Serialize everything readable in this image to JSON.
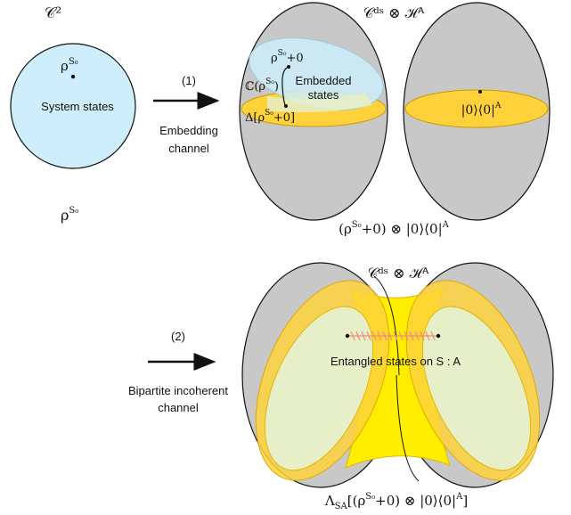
{
  "top": {
    "qubit_space": {
      "title": "𝒞²",
      "state_label": "ρ",
      "state_sup": "S₀",
      "region_label": "System states",
      "below_label": "ρ",
      "below_sup": "S₀"
    },
    "step1": {
      "number": "(1)",
      "line1": "Embedding",
      "line2": "channel"
    },
    "product_space": {
      "title": "𝒞ᵈˢ ⊗ ℋᴬ",
      "embedded_line1": "Embedded",
      "embedded_line2": "states",
      "rho_plus": "ρ",
      "rho_plus_sup": "S₀",
      "rho_plus_tail": "+0",
      "coherence_label": "ℂ(ρ",
      "coherence_sup": "S₀",
      "coherence_tail": ")",
      "dephased_label": "Δ[ρ",
      "dephased_sup": "S₀",
      "dephased_tail": "+0]",
      "ancilla_label": "|0⟩⟨0|",
      "ancilla_sup": "A",
      "caption_main": "(ρ",
      "caption_sup": "S₀",
      "caption_tail": "+0) ⊗ |0⟩⟨0|",
      "caption_sup2": "A"
    }
  },
  "bottom": {
    "step2": {
      "number": "(2)",
      "line1": "Bipartite incoherent",
      "line2": "channel"
    },
    "title": "𝒞ᵈˢ ⊗ ℋᴬ",
    "entangled_label": "Entangled states on S : A",
    "caption_main": "Λ",
    "caption_sub": "SA",
    "caption_tail": "[(ρ",
    "caption_sup": "S₀",
    "caption_tail2": "+0) ⊗ |0⟩⟨0|",
    "caption_sup2": "A",
    "caption_end": "]"
  },
  "colors": {
    "gray": "#c8c8c8",
    "light_blue": "#cdeefa",
    "gold": "#ffd23c",
    "pale_green": "#e6efc8",
    "bright_yellow": "#ffee00",
    "salmon": "#f08a7a"
  }
}
